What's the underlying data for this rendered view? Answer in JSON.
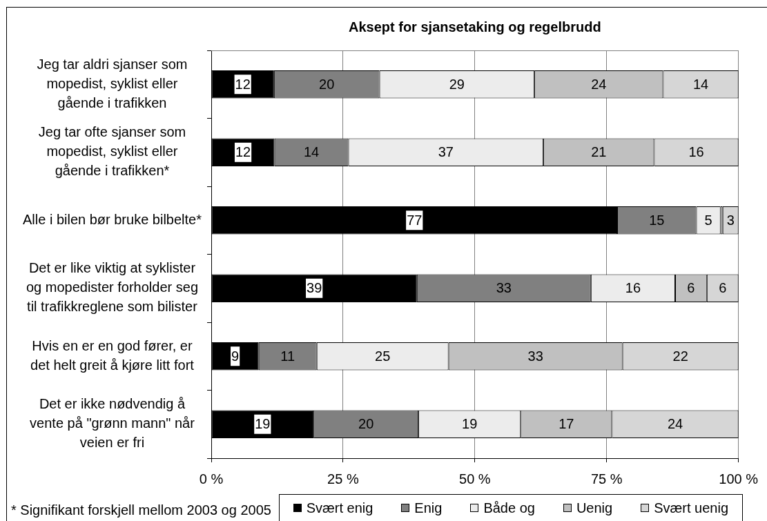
{
  "chart_data": {
    "type": "bar",
    "orientation": "horizontal",
    "stacked": true,
    "title": "Aksept for sjansetaking og regelbrudd",
    "categories": [
      "Jeg tar aldri sjanser som mopedist, syklist eller gående i trafikken",
      "Jeg tar ofte sjanser som mopedist, syklist eller gående i trafikken*",
      "Alle i bilen bør bruke bilbelte*",
      "Det er like viktig at syklister og mopedister forholder seg til trafikkreglene som bilister",
      "Hvis en er en god fører, er det helt greit å kjøre litt fort",
      "Det er ikke nødvendig å vente på \"grønn mann\" når veien er fri"
    ],
    "series": [
      {
        "name": "Svært enig",
        "color": "#000000",
        "values": [
          11.9,
          12,
          77,
          39,
          9,
          19.4
        ],
        "value_labels": [
          "12",
          "12",
          "77",
          "39",
          "9",
          "19"
        ]
      },
      {
        "name": "Enig",
        "color": "#808080",
        "values": [
          20,
          14,
          15,
          33,
          11,
          19.9
        ],
        "value_labels": [
          "20",
          "14",
          "15",
          "33",
          "11",
          "20"
        ]
      },
      {
        "name": "Både og",
        "color": "#ececec",
        "values": [
          29.4,
          37,
          4.6,
          16,
          25,
          19.4
        ],
        "value_labels": [
          "29",
          "37",
          "5",
          "16",
          "25",
          "19"
        ]
      },
      {
        "name": "Uenig",
        "color": "#c0c0c0",
        "values": [
          24.4,
          21,
          0.4,
          6,
          33,
          17.3
        ],
        "value_labels": [
          "24",
          "21",
          null,
          "6",
          "33",
          "17"
        ]
      },
      {
        "name": "Svært uenig",
        "color": "#d6d6d6",
        "values": [
          14.3,
          16,
          3,
          6,
          22,
          24
        ],
        "value_labels": [
          "14",
          "16",
          "3",
          "6",
          "22",
          "24"
        ]
      }
    ],
    "xlim": [
      0,
      100
    ],
    "xticks": [
      {
        "value": 0,
        "label": "0 %"
      },
      {
        "value": 25,
        "label": "25 %"
      },
      {
        "value": 50,
        "label": "50 %"
      },
      {
        "value": 75,
        "label": "75 %"
      },
      {
        "value": 100,
        "label": "100 %"
      }
    ],
    "grid": "x",
    "legend": "bottom",
    "annotations": [
      "* Signifikant forskjell mellom 2003 og 2005"
    ]
  }
}
